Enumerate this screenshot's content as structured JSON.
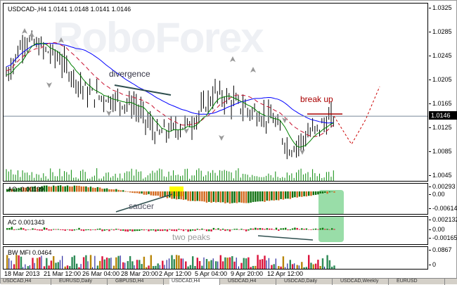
{
  "main": {
    "title": "USDCAD-,H4  1.0141 1.0148 1.0141 1.0146",
    "watermark": "RoboForex",
    "price_ticks": [
      "1.0325",
      "1.0285",
      "1.0245",
      "1.0205",
      "1.0165",
      "1.0125",
      "1.0085",
      "1.0045"
    ],
    "current_price": "1.0146",
    "annotations": {
      "divergence": "divergence",
      "break_up": "break up"
    }
  },
  "ao": {
    "label": "AO -0.00199",
    "ticks": [
      "0.00293",
      "0.00",
      "-0.00614"
    ],
    "annotation": "saucer"
  },
  "ac": {
    "label": "AC 0.001343",
    "ticks": [
      "0.002132",
      "0.00",
      "-0.00165"
    ],
    "annotation": "two peaks"
  },
  "mfi": {
    "label": "BW MFI 0.0464",
    "ticks": [
      "0.0867",
      "0"
    ]
  },
  "time_axis": [
    "18 Mar 2013",
    "21 Mar 12:00",
    "26 Mar 04:00",
    "28 Mar 20:00",
    "2 Apr 12:00",
    "5 Apr 04:00",
    "9 Apr 20:00",
    "12 Apr 12:00"
  ],
  "tabs": [
    "USDCAD,H4",
    "EURUSD,Daily",
    "GBPUSD,H4",
    "USDCAD,H4",
    "USDCAD,H4",
    "USDCAD,Daily",
    "USDCAD,Weekly",
    "EURUSD"
  ],
  "colors": {
    "ao_up": "#0a6e0a",
    "ao_down": "#d2691e",
    "ac_up": "#0a7a0a",
    "ac_down": "#dc143c",
    "ma_blue": "#0000ff",
    "ma_red": "#c8102e",
    "ma_green": "#008000",
    "highlight_green": "#99dda8",
    "saucer_yellow": "#ffff00"
  }
}
